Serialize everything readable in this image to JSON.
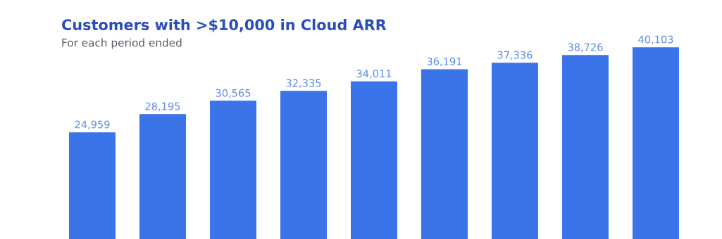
{
  "chart_data": {
    "type": "bar",
    "title": "Customers with >$10,000 in Cloud ARR",
    "subtitle": "For each period ended",
    "categories": [
      null,
      null,
      null,
      null,
      null,
      null,
      null,
      null,
      null
    ],
    "values": [
      24959,
      28195,
      30565,
      32335,
      34011,
      36191,
      37336,
      38726,
      40103
    ],
    "value_labels": [
      "24,959",
      "28,195",
      "30,565",
      "32,335",
      "34,011",
      "36,191",
      "37,336",
      "38,726",
      "40,103"
    ],
    "color": "#3b74e8",
    "tick_labels": false,
    "grid": false
  }
}
